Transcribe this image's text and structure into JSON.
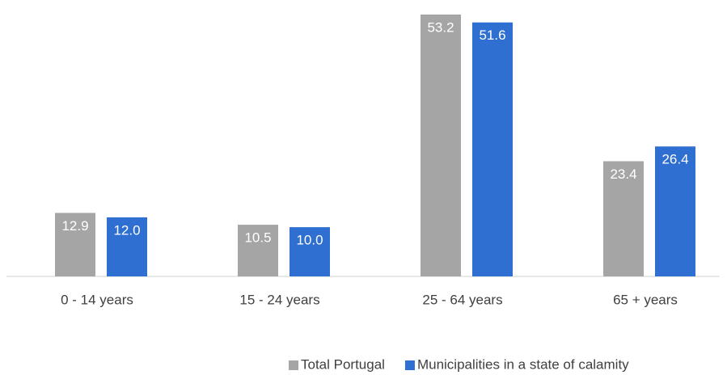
{
  "chart_data": {
    "type": "bar",
    "categories": [
      "0 - 14 years",
      "15 - 24 years",
      "25 - 64 years",
      "65 + years"
    ],
    "series": [
      {
        "name": "Total Portugal",
        "color": "#a5a5a5",
        "values": [
          12.9,
          10.5,
          53.2,
          23.4
        ],
        "value_labels": [
          "12.9",
          "10.5",
          "53.2",
          "23.4"
        ]
      },
      {
        "name": "Municipalities in a state of calamity",
        "color": "#2f6fd1",
        "values": [
          12.0,
          10.0,
          51.6,
          26.4
        ],
        "value_labels": [
          "12.0",
          "10.0",
          "51.6",
          "26.4"
        ]
      }
    ],
    "legend": "bottom"
  }
}
